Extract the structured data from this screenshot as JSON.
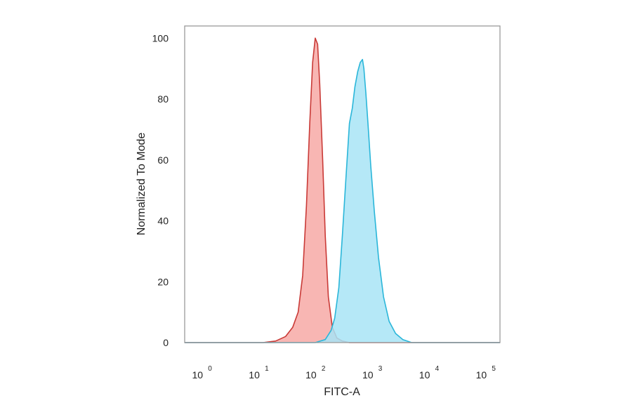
{
  "chart_data": {
    "type": "area",
    "xlabel": "FITC-A",
    "ylabel": "Normalized To Mode",
    "x_scale": "log",
    "xlim": [
      0.5,
      180000
    ],
    "ylim": [
      0,
      104
    ],
    "grid": false,
    "y_ticks": [
      {
        "value": 0,
        "label": "0"
      },
      {
        "value": 20,
        "label": "20"
      },
      {
        "value": 40,
        "label": "40"
      },
      {
        "value": 60,
        "label": "60"
      },
      {
        "value": 80,
        "label": "80"
      },
      {
        "value": 100,
        "label": "100"
      }
    ],
    "x_ticks": [
      {
        "value": 1,
        "base": "10",
        "exp": "0"
      },
      {
        "value": 10,
        "base": "10",
        "exp": "1"
      },
      {
        "value": 100,
        "base": "10",
        "exp": "2"
      },
      {
        "value": 1000,
        "base": "10",
        "exp": "3"
      },
      {
        "value": 10000,
        "base": "10",
        "exp": "4"
      },
      {
        "value": 100000,
        "base": "10",
        "exp": "5"
      }
    ],
    "series": [
      {
        "color_fill": "#f7a9a6",
        "color_line": "#c93a37",
        "points": [
          [
            0.5,
            0
          ],
          [
            12,
            0
          ],
          [
            20,
            0.5
          ],
          [
            30,
            2
          ],
          [
            40,
            5
          ],
          [
            50,
            10
          ],
          [
            60,
            22
          ],
          [
            70,
            45
          ],
          [
            80,
            72
          ],
          [
            90,
            92
          ],
          [
            100,
            100
          ],
          [
            110,
            98
          ],
          [
            120,
            85
          ],
          [
            135,
            60
          ],
          [
            150,
            35
          ],
          [
            170,
            15
          ],
          [
            200,
            5
          ],
          [
            240,
            1.5
          ],
          [
            300,
            0.5
          ],
          [
            400,
            0
          ],
          [
            180000,
            0
          ]
        ]
      },
      {
        "color_fill": "#a8e4f6",
        "color_line": "#2ab6d9",
        "points": [
          [
            0.5,
            0
          ],
          [
            100,
            0
          ],
          [
            150,
            1
          ],
          [
            190,
            4
          ],
          [
            220,
            8
          ],
          [
            260,
            18
          ],
          [
            300,
            35
          ],
          [
            350,
            55
          ],
          [
            400,
            72
          ],
          [
            450,
            77
          ],
          [
            500,
            84
          ],
          [
            560,
            89
          ],
          [
            620,
            92
          ],
          [
            680,
            93
          ],
          [
            720,
            90
          ],
          [
            780,
            82
          ],
          [
            850,
            72
          ],
          [
            950,
            58
          ],
          [
            1100,
            43
          ],
          [
            1300,
            28
          ],
          [
            1600,
            15
          ],
          [
            2000,
            7
          ],
          [
            2600,
            3
          ],
          [
            3500,
            1
          ],
          [
            5000,
            0
          ],
          [
            180000,
            0
          ]
        ]
      }
    ]
  }
}
